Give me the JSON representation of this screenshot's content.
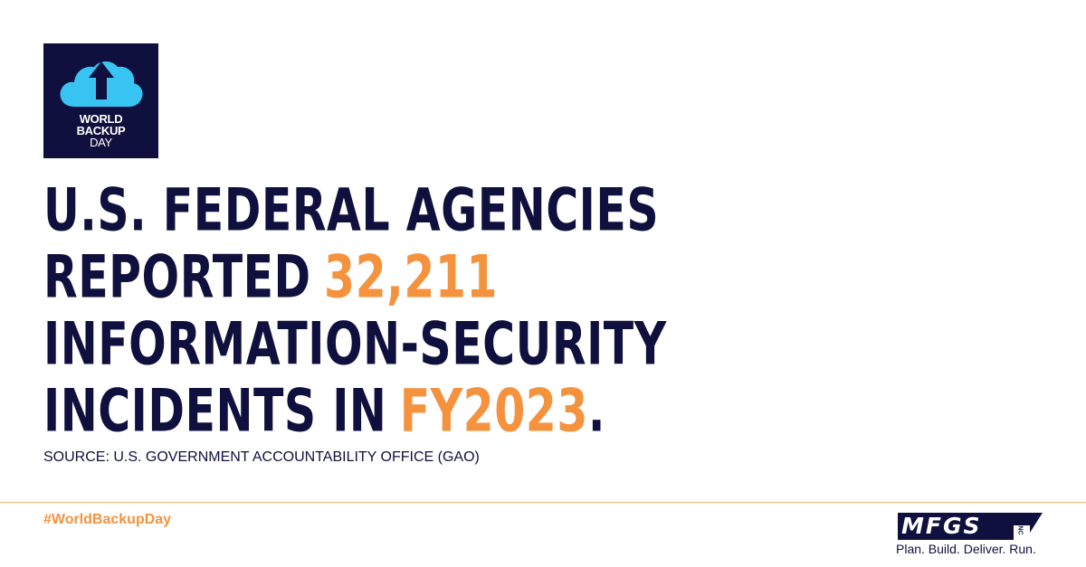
{
  "badge": {
    "lines": [
      "WORLD",
      "BACKUP",
      "DAY"
    ]
  },
  "headline": {
    "lines": [
      [
        {
          "text": "U.S. FEDERAL AGENCIES",
          "highlight": false
        }
      ],
      [
        {
          "text": "REPORTED",
          "highlight": false
        },
        {
          "text": "32,211",
          "highlight": true
        }
      ],
      [
        {
          "text": "INFORMATION-SECURITY",
          "highlight": false
        }
      ],
      [
        {
          "text": "INCIDENTS IN",
          "highlight": false
        },
        {
          "text": "FY2023",
          "highlight": true
        },
        {
          "text": ".",
          "highlight": false
        }
      ]
    ]
  },
  "source": "SOURCE: U.S. GOVERNMENT ACCOUNTABILITY OFFICE (GAO)",
  "hashtag": "#WorldBackupDay",
  "brand": {
    "name": "MFGS",
    "suffix": "INC",
    "tagline": "Plan. Build. Deliver. Run."
  }
}
